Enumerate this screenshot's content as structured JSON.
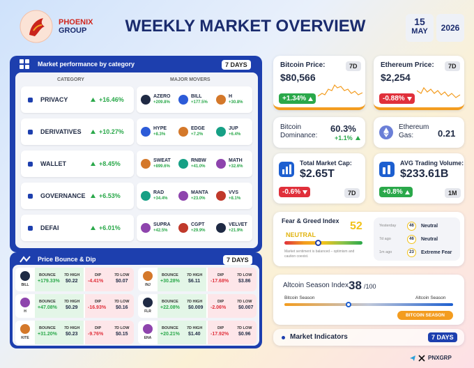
{
  "header": {
    "brand_line1": "PHOENIX",
    "brand_line2": "GROUP",
    "title": "WEEKLY MARKET OVERVIEW",
    "day": "15",
    "month": "MAY",
    "year": "2026"
  },
  "performance": {
    "title": "Market performance by category",
    "period": "7 DAYS",
    "col_category": "CATEGORY",
    "col_movers": "MAJOR MOVERS",
    "rows": [
      {
        "category": "PRIVACY",
        "change": "+16.46%",
        "movers": [
          {
            "name": "AZERO",
            "change": "+209.8%"
          },
          {
            "name": "BILL",
            "change": "+177.5%"
          },
          {
            "name": "H",
            "change": "+30.8%"
          }
        ]
      },
      {
        "category": "DERIVATIVES",
        "change": "+10.27%",
        "movers": [
          {
            "name": "HYPE",
            "change": "+8.3%"
          },
          {
            "name": "EDGE",
            "change": "+7.2%"
          },
          {
            "name": "JUP",
            "change": "+6.4%"
          }
        ]
      },
      {
        "category": "WALLET",
        "change": "+8.45%",
        "movers": [
          {
            "name": "SWEAT",
            "change": "+899.6%"
          },
          {
            "name": "RNBW",
            "change": "+41.0%"
          },
          {
            "name": "MATH",
            "change": "+32.6%"
          }
        ]
      },
      {
        "category": "GOVERNANCE",
        "change": "+6.53%",
        "movers": [
          {
            "name": "RAD",
            "change": "+34.4%"
          },
          {
            "name": "MANTA",
            "change": "+23.0%"
          },
          {
            "name": "VVS",
            "change": "+8.1%"
          }
        ]
      },
      {
        "category": "DEFAI",
        "change": "+6.01%",
        "movers": [
          {
            "name": "SUPRA",
            "change": "+42.5%"
          },
          {
            "name": "CGPT",
            "change": "+29.9%"
          },
          {
            "name": "VELVET",
            "change": "+21.9%"
          }
        ]
      }
    ]
  },
  "bounce_dip": {
    "title": "Price Bounce & Dip",
    "period": "7 DAYS",
    "labels": {
      "bounce": "BOUNCE",
      "high": "7D HIGH",
      "dip": "DIP",
      "low": "7D LOW"
    },
    "cards": [
      {
        "coin": "BILL",
        "bounce": "+179.33%",
        "high": "$0.22",
        "dip": "-4.41%",
        "low": "$0.07"
      },
      {
        "coin": "INJ",
        "bounce": "+30.28%",
        "high": "$6.11",
        "dip": "-17.68%",
        "low": "$3.86"
      },
      {
        "coin": "H",
        "bounce": "+47.08%",
        "high": "$0.29",
        "dip": "-16.93%",
        "low": "$0.16"
      },
      {
        "coin": "FLR",
        "bounce": "+22.08%",
        "high": "$0.009",
        "dip": "-2.06%",
        "low": "$0.007"
      },
      {
        "coin": "KITE",
        "bounce": "+31.20%",
        "high": "$0.23",
        "dip": "-9.76%",
        "low": "$0.15"
      },
      {
        "coin": "ENA",
        "bounce": "+20.21%",
        "high": "$1.40",
        "dip": "-17.92%",
        "low": "$0.96"
      }
    ]
  },
  "bitcoin": {
    "title": "Bitcoin Price:",
    "period": "7D",
    "price": "$80,566",
    "change": "+1.34%"
  },
  "ethereum": {
    "title": "Ethereum Price:",
    "period": "7D",
    "price": "$2,254",
    "change": "-0.88%"
  },
  "dominance": {
    "title": "Bitcoin Dominance:",
    "value": "60.3%",
    "change": "+1.1%"
  },
  "gas": {
    "title": "Ethereum Gas:",
    "value": "0.21"
  },
  "market_cap": {
    "title": "Total Market Cap:",
    "value": "$2.65T",
    "change": "-0.6%",
    "period": "7D"
  },
  "volume": {
    "title": "AVG Trading Volume:",
    "value": "$233.61B",
    "change": "+0.8%",
    "period": "1M"
  },
  "fear_greed": {
    "title": "Fear & Greed Index",
    "value": "52",
    "status": "NEUTRAL",
    "note": "Market sentiment is balanced – optimism and caution coexist.",
    "history": [
      {
        "when": "Yesterday",
        "value": "46",
        "status": "Neutral"
      },
      {
        "when": "7d ago",
        "value": "46",
        "status": "Neutral"
      },
      {
        "when": "1m ago",
        "value": "23",
        "status": "Extreme Fear"
      }
    ]
  },
  "altcoin": {
    "title": "Altcoin Season Index",
    "value": "38",
    "scale": "/100",
    "left_label": "Bitcoin Season",
    "right_label": "Altcoin Season",
    "badge": "BITCOIN SEASON"
  },
  "indicators": {
    "title": "Market Indicators",
    "period": "7 DAYS"
  },
  "footer": {
    "handle": "PNXGRP"
  }
}
